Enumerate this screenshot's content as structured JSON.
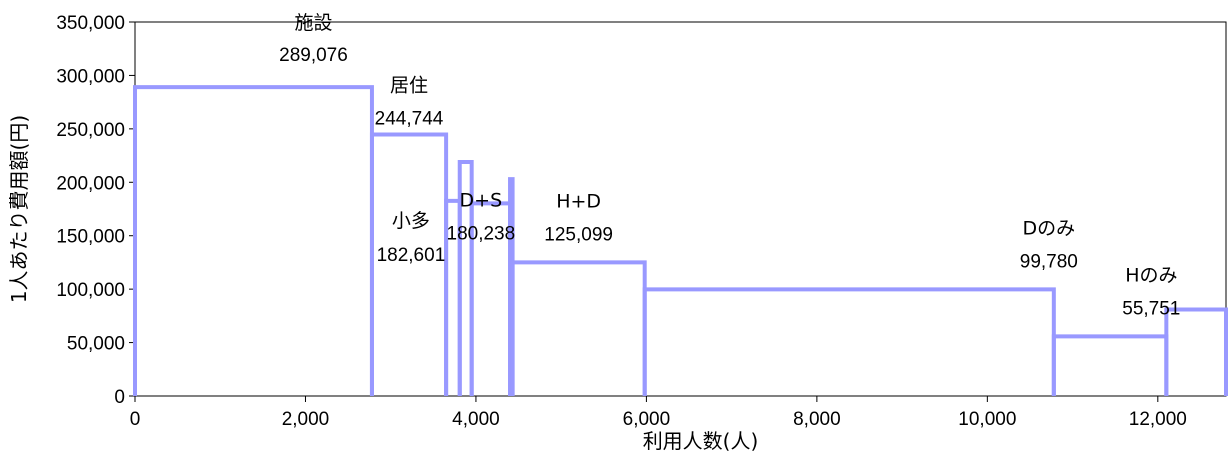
{
  "chart_data": {
    "type": "bar",
    "variant": "variable-width step bars (marimekko style)",
    "xlabel": "利用人数(人)",
    "ylabel": "1人あたり費用額(円)",
    "xlim": [
      0,
      12800
    ],
    "ylim": [
      0,
      350000
    ],
    "x_ticks": [
      0,
      2000,
      4000,
      6000,
      8000,
      10000,
      12000
    ],
    "x_tick_labels": [
      "0",
      "2,000",
      "4,000",
      "6,000",
      "8,000",
      "10,000",
      "12,000"
    ],
    "y_ticks": [
      0,
      50000,
      100000,
      150000,
      200000,
      250000,
      300000,
      350000
    ],
    "y_tick_labels": [
      "0",
      "50,000",
      "100,000",
      "150,000",
      "200,000",
      "250,000",
      "300,000",
      "350,000"
    ],
    "grid": false,
    "line_color": "#9999ff",
    "segments": [
      {
        "name": "施設",
        "x_start": 0,
        "x_end": 2780,
        "value": 289076,
        "value_label": "289,076"
      },
      {
        "name": "居住",
        "x_start": 2780,
        "x_end": 3650,
        "value": 244744,
        "value_label": "244,744"
      },
      {
        "name": "小多",
        "x_start": 3650,
        "x_end": 3810,
        "value": 182601,
        "value_label": "182,601"
      },
      {
        "name": "",
        "x_start": 3810,
        "x_end": 3950,
        "value": 219000,
        "value_label": ""
      },
      {
        "name": "D+S",
        "x_start": 3950,
        "x_end": 4400,
        "value": 180238,
        "value_label": "180,238"
      },
      {
        "name": "",
        "x_start": 4400,
        "x_end": 4430,
        "value": 203000,
        "value_label": ""
      },
      {
        "name": "H+D",
        "x_start": 4430,
        "x_end": 5980,
        "value": 125099,
        "value_label": "125,099"
      },
      {
        "name": "Dのみ",
        "x_start": 5980,
        "x_end": 10780,
        "value": 99780,
        "value_label": "99,780"
      },
      {
        "name": "Hのみ",
        "x_start": 10780,
        "x_end": 12100,
        "value": 55751,
        "value_label": "55,751"
      },
      {
        "name": "",
        "x_start": 12100,
        "x_end": 12800,
        "value": 81000,
        "value_label": ""
      }
    ]
  }
}
